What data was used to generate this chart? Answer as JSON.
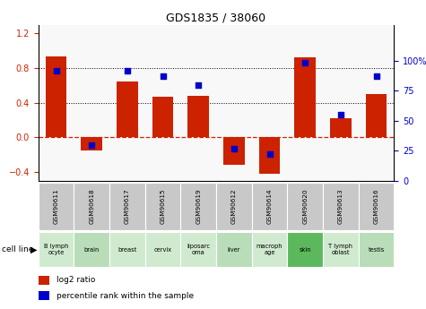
{
  "title": "GDS1835 / 38060",
  "gsm_labels": [
    "GSM90611",
    "GSM90618",
    "GSM90617",
    "GSM90615",
    "GSM90619",
    "GSM90612",
    "GSM90614",
    "GSM90620",
    "GSM90613",
    "GSM90616"
  ],
  "cell_lines": [
    "B lymph\nocyte",
    "brain",
    "breast",
    "cervix",
    "liposarc\noma",
    "liver",
    "macroph\nage",
    "skin",
    "T lymph\noblast",
    "testis"
  ],
  "cell_line_colors": [
    "#d0ead0",
    "#b8ddb8",
    "#d0ead0",
    "#d0ead0",
    "#d0ead0",
    "#b8ddb8",
    "#d0ead0",
    "#5cb85c",
    "#d0ead0",
    "#b8ddb8"
  ],
  "log2_ratio": [
    0.93,
    -0.15,
    0.65,
    0.47,
    0.48,
    -0.32,
    -0.42,
    0.92,
    0.22,
    0.5
  ],
  "percentile_rank": [
    92,
    30,
    92,
    87,
    80,
    27,
    22,
    98,
    55,
    87
  ],
  "bar_color": "#cc2200",
  "dot_color": "#0000cc",
  "ylim_left": [
    -0.5,
    1.3
  ],
  "ylim_right": [
    0,
    130
  ],
  "yticks_left": [
    -0.4,
    0.0,
    0.4,
    0.8,
    1.2
  ],
  "yticks_right": [
    0,
    25,
    50,
    75,
    100
  ],
  "ytick_labels_right": [
    "0",
    "25",
    "50",
    "75",
    "100%"
  ],
  "hlines": [
    0.4,
    0.8
  ],
  "zero_line_color": "#cc2200",
  "bar_width": 0.6,
  "gsm_bg_color": "#c8c8c8",
  "plot_bg": "#f8f8f8"
}
